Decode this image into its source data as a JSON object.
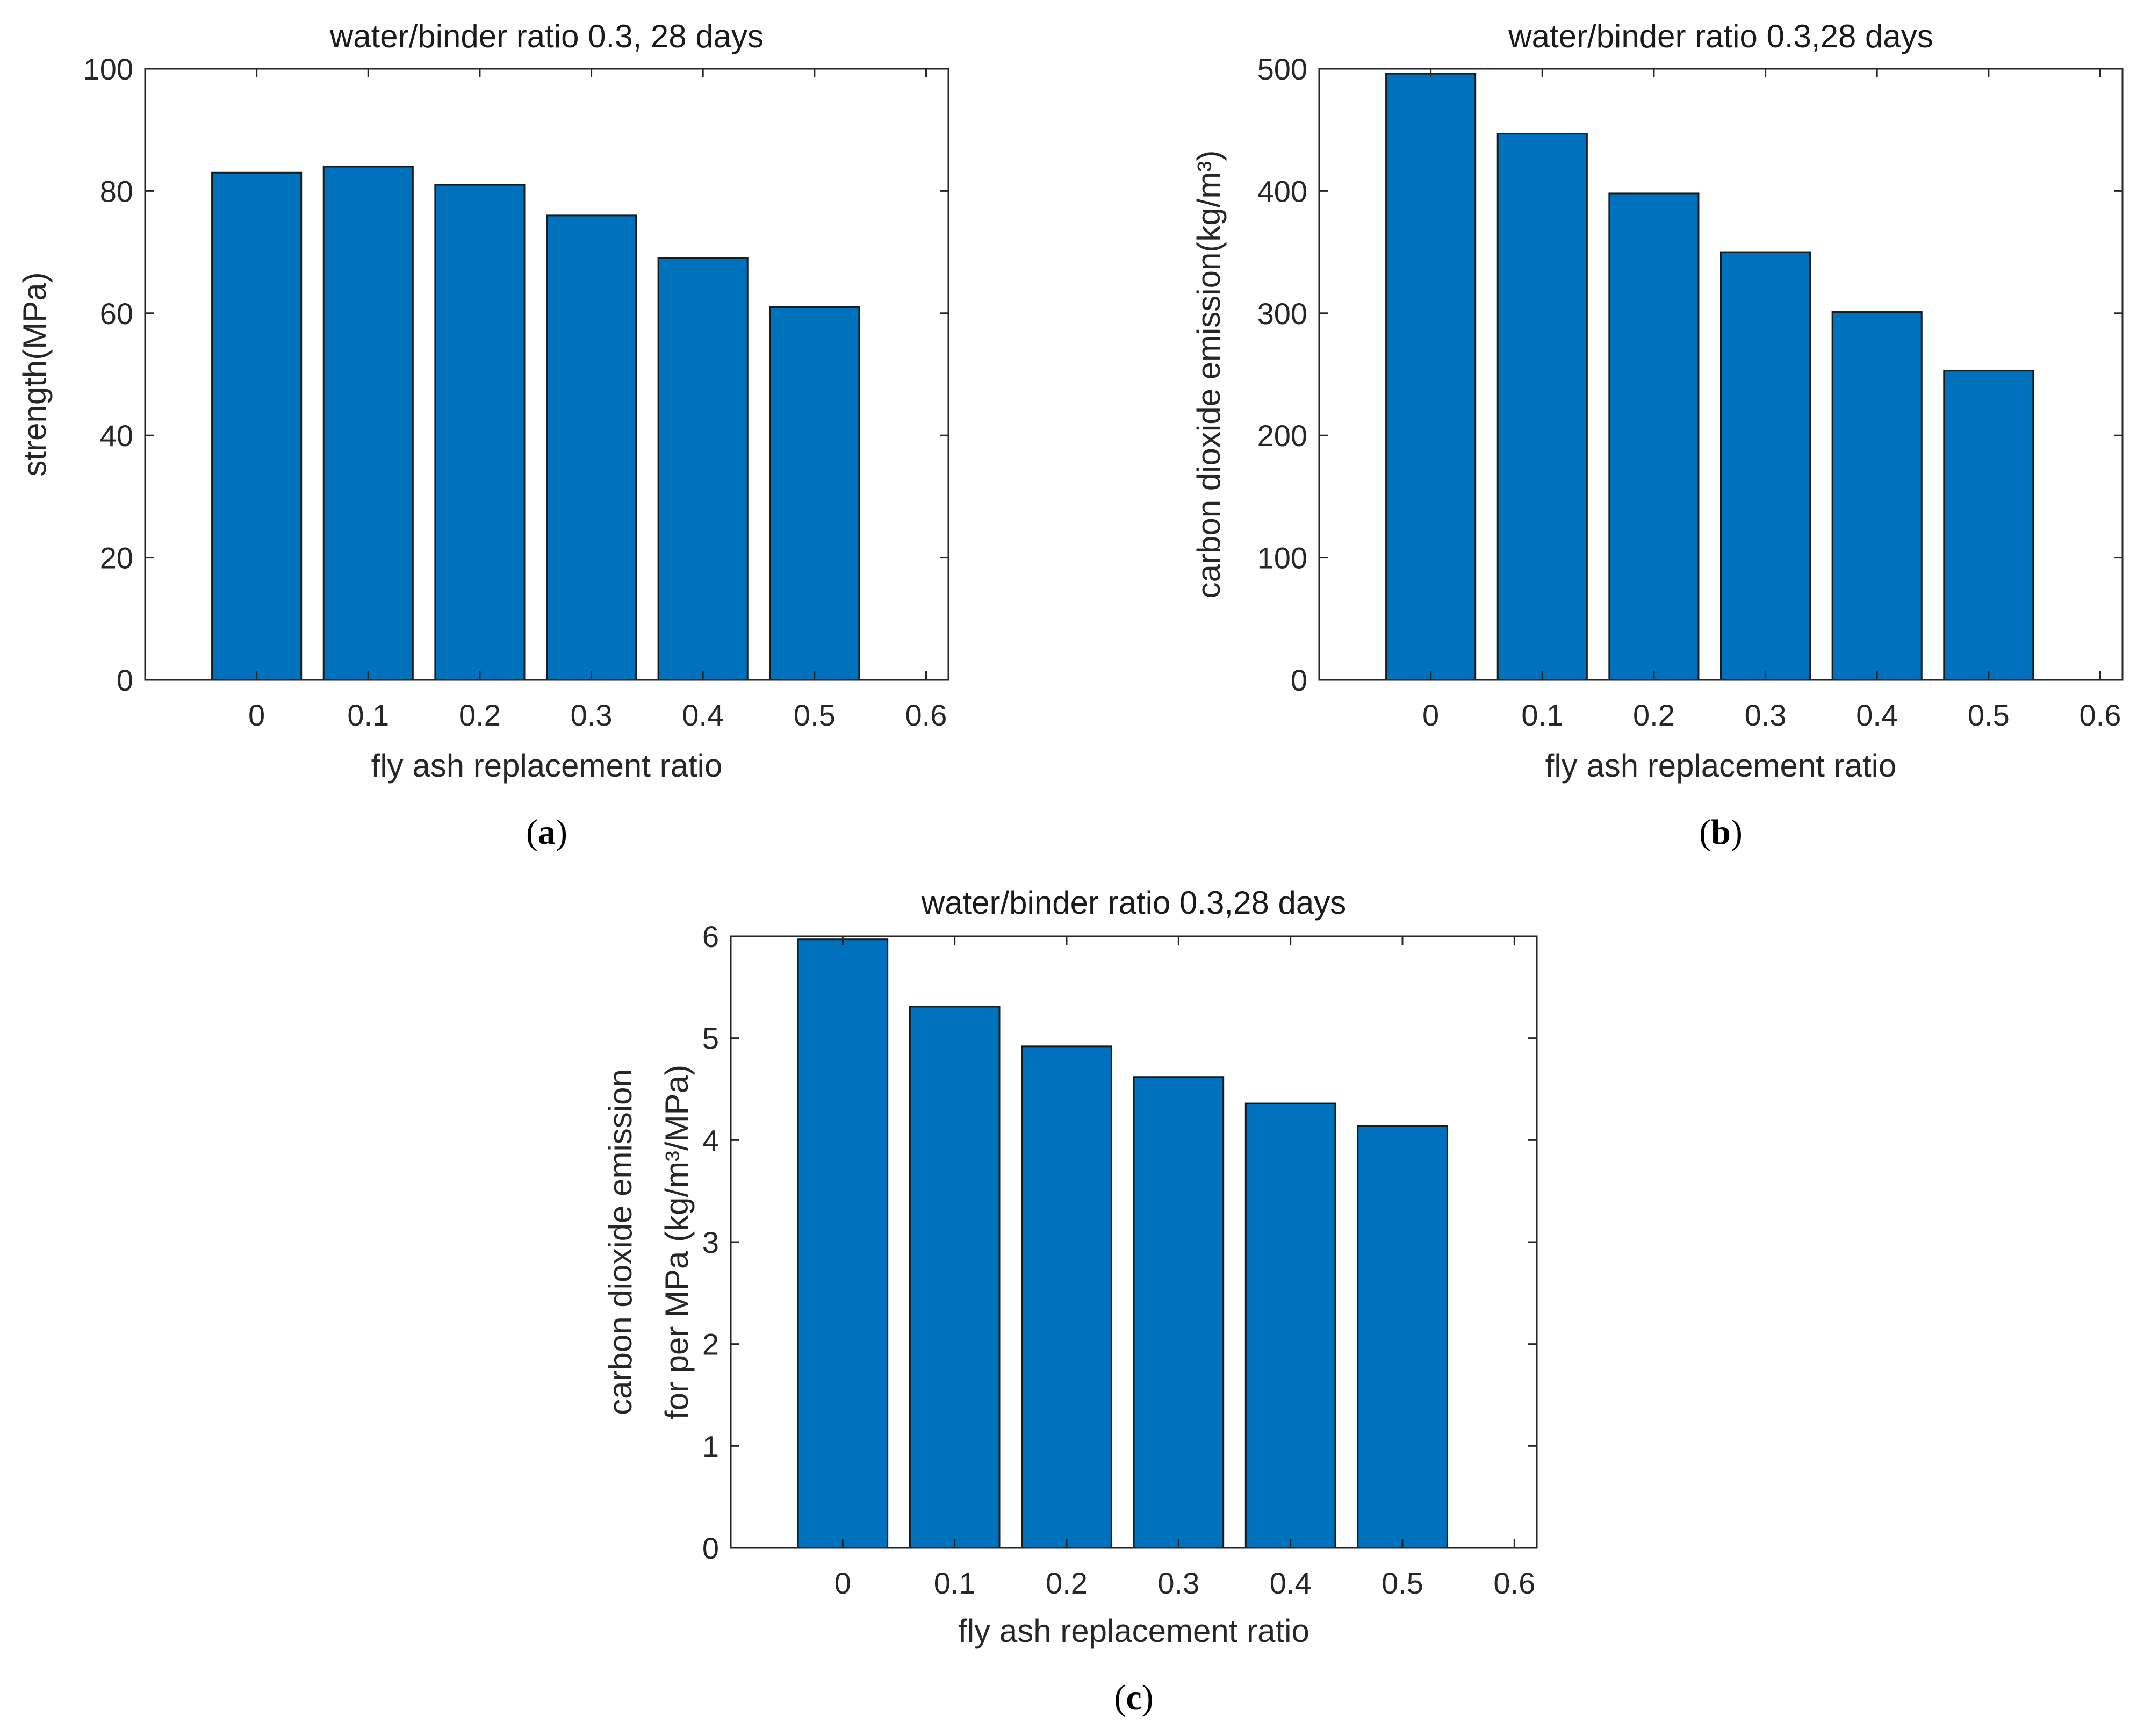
{
  "chart_data": [
    {
      "id": "a",
      "type": "bar",
      "title": "water/binder ratio 0.3, 28 days",
      "xlabel": "fly ash replacement ratio",
      "ylabel": "strength(MPa)",
      "ylabel_lines": [
        "strength(MPa)"
      ],
      "categories": [
        "0",
        "0.1",
        "0.2",
        "0.3",
        "0.4",
        "0.5"
      ],
      "x": [
        0,
        0.1,
        0.2,
        0.3,
        0.4,
        0.5
      ],
      "values": [
        83,
        84,
        81,
        76,
        69,
        61
      ],
      "xlim": [
        -0.1,
        0.62
      ],
      "ylim": [
        0,
        100
      ],
      "xticks": [
        "0",
        "0.1",
        "0.2",
        "0.3",
        "0.4",
        "0.5",
        "0.6"
      ],
      "yticks": [
        "0",
        "20",
        "40",
        "60",
        "80",
        "100"
      ],
      "bar_color": "#0072bd",
      "grid": false,
      "caption": {
        "open": "(",
        "letter": "a",
        "close": ")"
      }
    },
    {
      "id": "b",
      "type": "bar",
      "title": "water/binder ratio 0.3,28 days",
      "xlabel": "fly ash replacement ratio",
      "ylabel": "carbon dioxide emission(kg/m3)",
      "ylabel_lines": [
        "carbon dioxide emission(kg/m³)"
      ],
      "categories": [
        "0",
        "0.1",
        "0.2",
        "0.3",
        "0.4",
        "0.5"
      ],
      "x": [
        0,
        0.1,
        0.2,
        0.3,
        0.4,
        0.5
      ],
      "values": [
        496,
        447,
        398,
        350,
        301,
        253
      ],
      "xlim": [
        -0.1,
        0.62
      ],
      "ylim": [
        0,
        500
      ],
      "xticks": [
        "0",
        "0.1",
        "0.2",
        "0.3",
        "0.4",
        "0.5",
        "0.6"
      ],
      "yticks": [
        "0",
        "100",
        "200",
        "300",
        "400",
        "500"
      ],
      "bar_color": "#0072bd",
      "grid": false,
      "caption": {
        "open": "(",
        "letter": "b",
        "close": ")"
      }
    },
    {
      "id": "c",
      "type": "bar",
      "title": "water/binder ratio 0.3,28 days",
      "xlabel": "fly ash replacement ratio",
      "ylabel": "carbon dioxide emission for per MPa (kg/m3/MPa)",
      "ylabel_lines": [
        "carbon dioxide emission",
        "for per MPa (kg/m³/MPa)"
      ],
      "categories": [
        "0",
        "0.1",
        "0.2",
        "0.3",
        "0.4",
        "0.5"
      ],
      "x": [
        0,
        0.1,
        0.2,
        0.3,
        0.4,
        0.5
      ],
      "values": [
        5.97,
        5.31,
        4.92,
        4.62,
        4.36,
        4.14
      ],
      "xlim": [
        -0.1,
        0.62
      ],
      "ylim": [
        0,
        6
      ],
      "xticks": [
        "0",
        "0.1",
        "0.2",
        "0.3",
        "0.4",
        "0.5",
        "0.6"
      ],
      "yticks": [
        "0",
        "1",
        "2",
        "3",
        "4",
        "5",
        "6"
      ],
      "bar_color": "#0072bd",
      "grid": false,
      "caption": {
        "open": "(",
        "letter": "c",
        "close": ")"
      }
    }
  ]
}
